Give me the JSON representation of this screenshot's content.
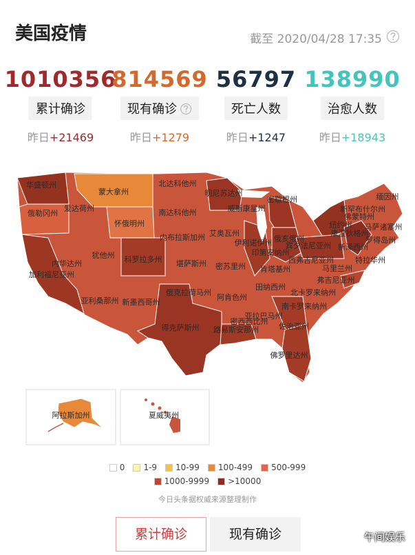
{
  "header": {
    "title": "美国疫情",
    "timestamp": "截至 2020/04/28 17:35"
  },
  "stats": [
    {
      "value": 1010356,
      "label": "累计确诊",
      "delta_prefix": "昨日",
      "delta": "+21469",
      "color": "#9e2a2b"
    },
    {
      "value": 814569,
      "label": "现有确诊",
      "delta_prefix": "昨日",
      "delta": "+1279",
      "color": "#d4692b"
    },
    {
      "value": 56797,
      "label": "死亡人数",
      "delta_prefix": "昨日",
      "delta": "+1247",
      "color": "#1e3044"
    },
    {
      "value": 138990,
      "label": "治愈人数",
      "delta_prefix": "昨日",
      "delta": "+18943",
      "color": "#45c4bd"
    }
  ],
  "map": {
    "states": [
      "华盛顿州",
      "蒙大拿州",
      "北达科他州",
      "明尼苏达州",
      "缅因州",
      "俄勒冈州",
      "爱达荷州",
      "南达科他州",
      "威斯康星州",
      "密歇根州",
      "新罕布什尔州",
      "佛蒙特州",
      "怀俄明州",
      "纽约州",
      "马萨诸塞州",
      "康涅狄格州",
      "罗得岛州",
      "艾奥瓦州",
      "内布拉斯加州",
      "宾夕法尼亚州",
      "新泽西州",
      "伊利诺伊州",
      "俄亥俄州",
      "印第安纳州",
      "特拉华州",
      "内华达州",
      "犹他州",
      "科罗拉多州",
      "堪萨斯州",
      "密苏里州",
      "西弗吉尼亚州",
      "马里兰州",
      "加利福尼亚州",
      "肯塔基州",
      "弗吉尼亚州",
      "田纳西州",
      "北卡罗来纳州",
      "俄克拉荷马州",
      "阿肯色州",
      "亚利桑那州",
      "新墨西哥州",
      "南卡罗来纳州",
      "亚拉巴马州",
      "密西西比州",
      "佐治亚州",
      "路易斯安那州",
      "得克萨斯州",
      "佛罗里达州"
    ],
    "insets": [
      "阿拉斯加州",
      "夏威夷州"
    ]
  },
  "legend": [
    {
      "label": "0",
      "color": "#ffffff"
    },
    {
      "label": "1-9",
      "color": "#fff3b3"
    },
    {
      "label": "10-99",
      "color": "#f2c24e"
    },
    {
      "label": "100-499",
      "color": "#e8893a"
    },
    {
      "label": "500-999",
      "color": "#e0664c"
    },
    {
      "label": "1000-9999",
      "color": "#c4452f"
    },
    {
      "label": ">10000",
      "color": "#8e2c20"
    }
  ],
  "source": "今日头条据权威来源整理制作",
  "tabs": [
    "累计确诊",
    "现有确诊"
  ],
  "watermark": "午间娱乐"
}
